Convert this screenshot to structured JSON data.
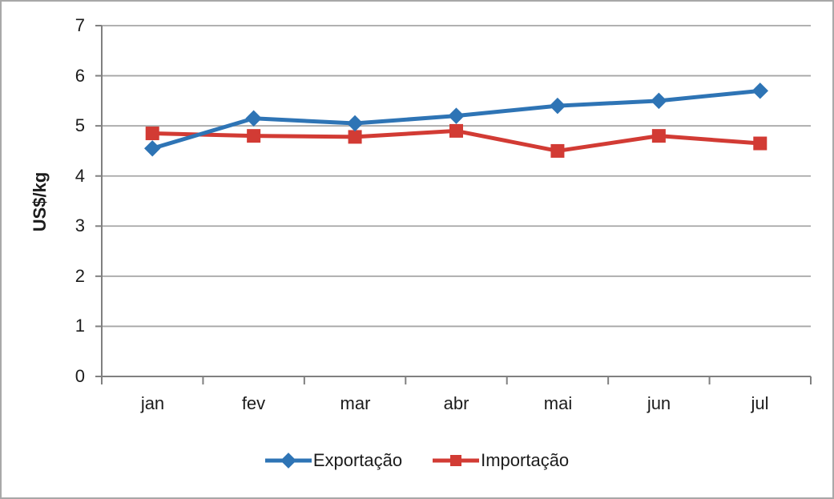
{
  "frame": {
    "background": "#ffffff",
    "border_color": "#a8a8a8"
  },
  "chart_data": {
    "type": "line",
    "title": "",
    "xlabel": "",
    "ylabel": "US$/kg",
    "categories": [
      "jan",
      "fev",
      "mar",
      "abr",
      "mai",
      "jun",
      "jul"
    ],
    "series": [
      {
        "name": "Exportação",
        "color": "#2E74B5",
        "marker": "diamond",
        "values": [
          4.55,
          5.15,
          5.05,
          5.2,
          5.4,
          5.5,
          5.7
        ]
      },
      {
        "name": "Importação",
        "color": "#D23B34",
        "marker": "square",
        "values": [
          4.85,
          4.8,
          4.78,
          4.9,
          4.5,
          4.8,
          4.65
        ]
      }
    ],
    "ylim": [
      0,
      7
    ],
    "yticks": [
      0,
      1,
      2,
      3,
      4,
      5,
      6,
      7
    ],
    "grid": "horizontal",
    "legend_position": "bottom",
    "axis_color": "#808080",
    "grid_color": "#a6a6a6",
    "tick_label_color": "#1c1c1c"
  }
}
